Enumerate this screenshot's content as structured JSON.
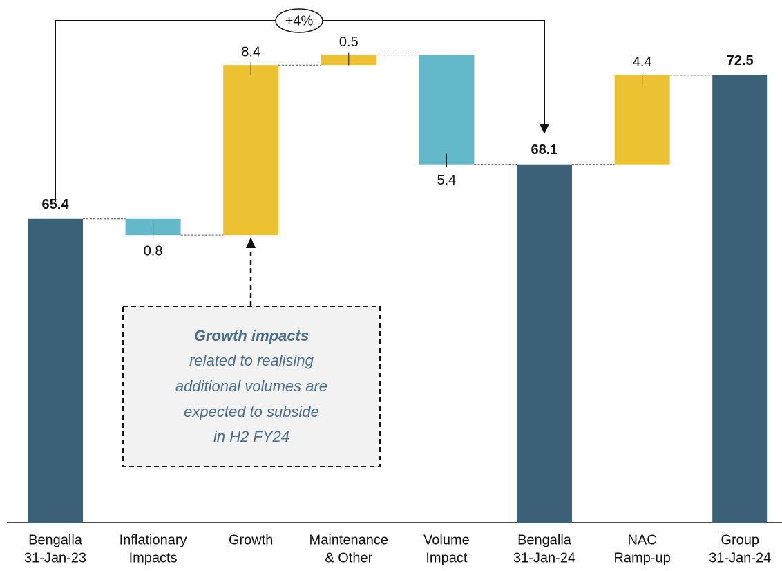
{
  "chart_data": {
    "type": "waterfall",
    "categories": [
      [
        "Bengalla",
        "31-Jan-23"
      ],
      [
        "Inflationary",
        "Impacts"
      ],
      [
        "Growth"
      ],
      [
        "Maintenance",
        "& Other"
      ],
      [
        "Volume",
        "Impact"
      ],
      [
        "Bengalla",
        "31-Jan-24"
      ],
      [
        "NAC",
        "Ramp-up"
      ],
      [
        "Group",
        "31-Jan-24"
      ]
    ],
    "values": [
      65.4,
      -0.8,
      8.4,
      0.5,
      -5.4,
      68.1,
      4.4,
      72.5
    ],
    "value_labels": [
      "65.4",
      "0.8",
      "8.4",
      "0.5",
      "5.4",
      "68.1",
      "4.4",
      "72.5"
    ],
    "measure": [
      "absolute",
      "relative",
      "relative",
      "relative",
      "relative",
      "absolute",
      "relative",
      "absolute"
    ],
    "colors": [
      "#3d6079",
      "#63b9c9",
      "#ecc232",
      "#ecc232",
      "#63b9c9",
      "#3d6079",
      "#ecc232",
      "#3d6079"
    ],
    "ylim": [
      50.4,
      75.5
    ],
    "growth_label": "+4%",
    "callout": {
      "title": "Growth impacts",
      "lines": [
        "related to realising",
        "additional volumes are",
        "expected to subside",
        "in H2 FY24"
      ]
    }
  }
}
